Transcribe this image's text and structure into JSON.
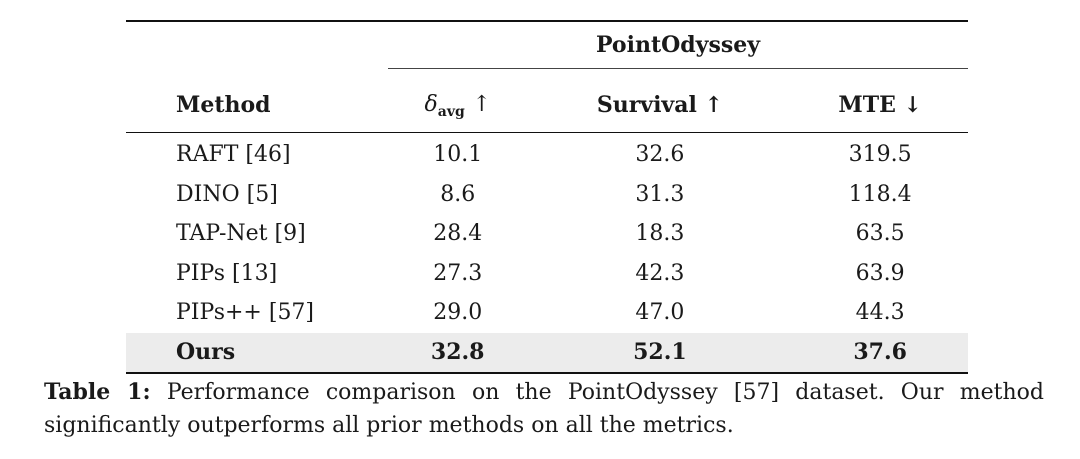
{
  "table": {
    "group_header": "PointOdyssey",
    "columns": {
      "method": "Method",
      "delta_symbol": "δ",
      "delta_sub": "avg",
      "delta_arrow": "↑",
      "survival": "Survival ↑",
      "mte": "MTE ↓"
    },
    "rows": [
      {
        "method": "RAFT [46]",
        "delta_avg": "10.1",
        "survival": "32.6",
        "mte": "319.5"
      },
      {
        "method": "DINO [5]",
        "delta_avg": "8.6",
        "survival": "31.3",
        "mte": "118.4"
      },
      {
        "method": "TAP-Net [9]",
        "delta_avg": "28.4",
        "survival": "18.3",
        "mte": "63.5"
      },
      {
        "method": "PIPs [13]",
        "delta_avg": "27.3",
        "survival": "42.3",
        "mte": "63.9"
      },
      {
        "method": "PIPs++ [57]",
        "delta_avg": "29.0",
        "survival": "47.0",
        "mte": "44.3"
      },
      {
        "method": "Ours",
        "delta_avg": "32.8",
        "survival": "52.1",
        "mte": "37.6"
      }
    ]
  },
  "caption": {
    "label": "Table 1:",
    "text": "Performance comparison on the PointOdyssey [57] dataset. Our method significantly outperforms all prior methods on all the metrics."
  }
}
